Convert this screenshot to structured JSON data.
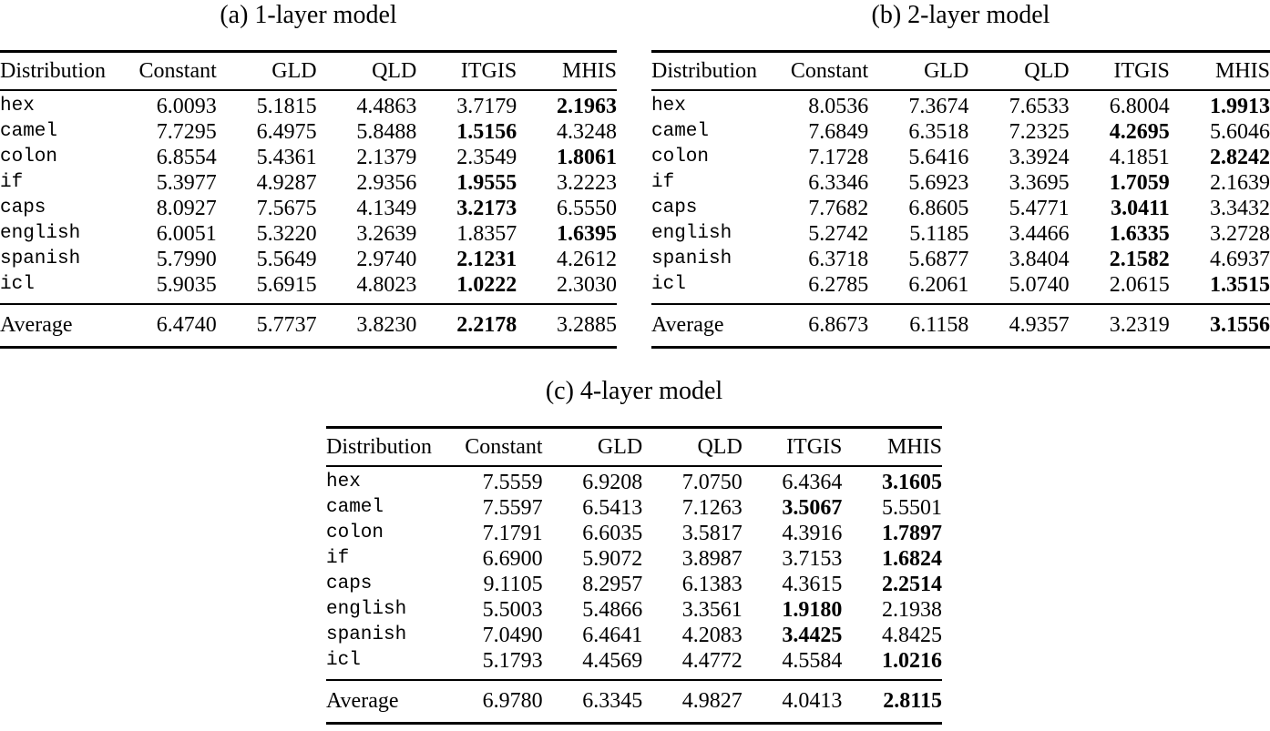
{
  "tables": [
    {
      "id": "a",
      "title": "(a) 1-layer model",
      "columns": [
        "Distribution",
        "Constant",
        "GLD",
        "QLD",
        "ITGIS",
        "MHIS"
      ],
      "rows": [
        {
          "label": "hex",
          "values": [
            "6.0093",
            "5.1815",
            "4.4863",
            "3.7179",
            "2.1963"
          ],
          "bold": 4
        },
        {
          "label": "camel",
          "values": [
            "7.7295",
            "6.4975",
            "5.8488",
            "1.5156",
            "4.3248"
          ],
          "bold": 3
        },
        {
          "label": "colon",
          "values": [
            "6.8554",
            "5.4361",
            "2.1379",
            "2.3549",
            "1.8061"
          ],
          "bold": 4
        },
        {
          "label": "if",
          "values": [
            "5.3977",
            "4.9287",
            "2.9356",
            "1.9555",
            "3.2223"
          ],
          "bold": 3
        },
        {
          "label": "caps",
          "values": [
            "8.0927",
            "7.5675",
            "4.1349",
            "3.2173",
            "6.5550"
          ],
          "bold": 3
        },
        {
          "label": "english",
          "values": [
            "6.0051",
            "5.3220",
            "3.2639",
            "1.8357",
            "1.6395"
          ],
          "bold": 4
        },
        {
          "label": "spanish",
          "values": [
            "5.7990",
            "5.5649",
            "2.9740",
            "2.1231",
            "4.2612"
          ],
          "bold": 3
        },
        {
          "label": "icl",
          "values": [
            "5.9035",
            "5.6915",
            "4.8023",
            "1.0222",
            "2.3030"
          ],
          "bold": 3
        }
      ],
      "average": {
        "label": "Average",
        "values": [
          "6.4740",
          "5.7737",
          "3.8230",
          "2.2178",
          "3.2885"
        ],
        "bold": 3
      }
    },
    {
      "id": "b",
      "title": "(b) 2-layer model",
      "columns": [
        "Distribution",
        "Constant",
        "GLD",
        "QLD",
        "ITGIS",
        "MHIS"
      ],
      "rows": [
        {
          "label": "hex",
          "values": [
            "8.0536",
            "7.3674",
            "7.6533",
            "6.8004",
            "1.9913"
          ],
          "bold": 4
        },
        {
          "label": "camel",
          "values": [
            "7.6849",
            "6.3518",
            "7.2325",
            "4.2695",
            "5.6046"
          ],
          "bold": 3
        },
        {
          "label": "colon",
          "values": [
            "7.1728",
            "5.6416",
            "3.3924",
            "4.1851",
            "2.8242"
          ],
          "bold": 4
        },
        {
          "label": "if",
          "values": [
            "6.3346",
            "5.6923",
            "3.3695",
            "1.7059",
            "2.1639"
          ],
          "bold": 3
        },
        {
          "label": "caps",
          "values": [
            "7.7682",
            "6.8605",
            "5.4771",
            "3.0411",
            "3.3432"
          ],
          "bold": 3
        },
        {
          "label": "english",
          "values": [
            "5.2742",
            "5.1185",
            "3.4466",
            "1.6335",
            "3.2728"
          ],
          "bold": 3
        },
        {
          "label": "spanish",
          "values": [
            "6.3718",
            "5.6877",
            "3.8404",
            "2.1582",
            "4.6937"
          ],
          "bold": 3
        },
        {
          "label": "icl",
          "values": [
            "6.2785",
            "6.2061",
            "5.0740",
            "2.0615",
            "1.3515"
          ],
          "bold": 4
        }
      ],
      "average": {
        "label": "Average",
        "values": [
          "6.8673",
          "6.1158",
          "4.9357",
          "3.2319",
          "3.1556"
        ],
        "bold": 4
      }
    },
    {
      "id": "c",
      "title": "(c) 4-layer model",
      "columns": [
        "Distribution",
        "Constant",
        "GLD",
        "QLD",
        "ITGIS",
        "MHIS"
      ],
      "rows": [
        {
          "label": "hex",
          "values": [
            "7.5559",
            "6.9208",
            "7.0750",
            "6.4364",
            "3.1605"
          ],
          "bold": 4
        },
        {
          "label": "camel",
          "values": [
            "7.5597",
            "6.5413",
            "7.1263",
            "3.5067",
            "5.5501"
          ],
          "bold": 3
        },
        {
          "label": "colon",
          "values": [
            "7.1791",
            "6.6035",
            "3.5817",
            "4.3916",
            "1.7897"
          ],
          "bold": 4
        },
        {
          "label": "if",
          "values": [
            "6.6900",
            "5.9072",
            "3.8987",
            "3.7153",
            "1.6824"
          ],
          "bold": 4
        },
        {
          "label": "caps",
          "values": [
            "9.1105",
            "8.2957",
            "6.1383",
            "4.3615",
            "2.2514"
          ],
          "bold": 4
        },
        {
          "label": "english",
          "values": [
            "5.5003",
            "5.4866",
            "3.3561",
            "1.9180",
            "2.1938"
          ],
          "bold": 3
        },
        {
          "label": "spanish",
          "values": [
            "7.0490",
            "6.4641",
            "4.2083",
            "3.4425",
            "4.8425"
          ],
          "bold": 3
        },
        {
          "label": "icl",
          "values": [
            "5.1793",
            "4.4569",
            "4.4772",
            "4.5584",
            "1.0216"
          ],
          "bold": 4
        }
      ],
      "average": {
        "label": "Average",
        "values": [
          "6.9780",
          "6.3345",
          "4.9827",
          "4.0413",
          "2.8115"
        ],
        "bold": 4
      }
    }
  ]
}
